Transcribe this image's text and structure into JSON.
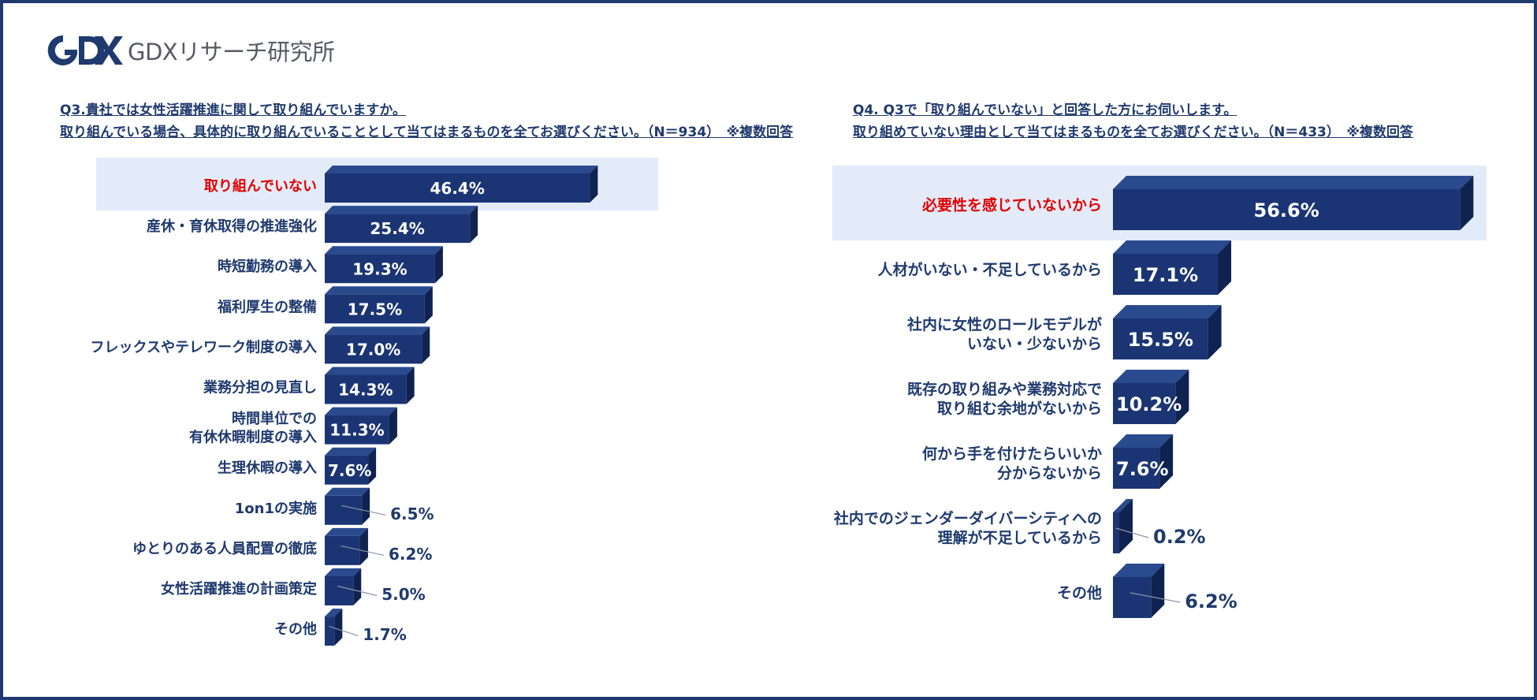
{
  "brand": {
    "logo_text": "GDXリサーチ研究所",
    "color": "#1f3a6e"
  },
  "questions": {
    "q3": {
      "line1": "Q3.貴社では女性活躍推進に関して取り組んでいますか。",
      "line2": "取り組んでいる場合、具体的に取り組んでいることとして当てはまるものを全てお選びください。（N＝934）　※複数回答"
    },
    "q4": {
      "line1": "Q4. Q3で「取り組んでいない」と回答した方にお伺いします。",
      "line2": "取り組めていない理由として当てはまるものを全てお選びください。（N＝433）　※複数回答"
    }
  },
  "colors": {
    "bar_front": "#1b3574",
    "bar_side": "#0f2250",
    "bar_top": "#2a4a8e",
    "highlight_bg": "#e3ebf8",
    "highlight_text": "#e00000",
    "label_text": "#1f3a6e"
  },
  "chart_data": [
    {
      "type": "bar",
      "orientation": "horizontal",
      "categories": [
        "取り組んでいない",
        "産休・育休取得の推進強化",
        "時短勤務の導入",
        "福利厚生の整備",
        "フレックスやテレワーク制度の導入",
        "業務分担の見直し",
        "時間単位での\n有休休暇制度の導入",
        "生理休暇の導入",
        "1on1の実施",
        "ゆとりのある人員配置の徹底",
        "女性活躍推進の計画策定",
        "その他"
      ],
      "values": [
        46.4,
        25.4,
        19.3,
        17.5,
        17.0,
        14.3,
        11.3,
        7.6,
        6.5,
        6.2,
        5.0,
        1.7
      ],
      "data_labels": [
        "46.4%",
        "25.4%",
        "19.3%",
        "17.5%",
        "17.0%",
        "14.3%",
        "11.3%",
        "7.6%",
        "6.5%",
        "6.2%",
        "5.0%",
        "1.7%"
      ],
      "highlight_index": 0
    },
    {
      "type": "bar",
      "orientation": "horizontal",
      "categories": [
        "必要性を感じていないから",
        "人材がいない・不足しているから",
        "社内に女性のロールモデルが\nいない・少ないから",
        "既存の取り組みや業務対応で\n取り組む余地がないから",
        "何から手を付けたらいいか\n分からないから",
        "社内でのジェンダーダイバーシティへの\n理解が不足しているから",
        "その他"
      ],
      "values": [
        56.6,
        17.1,
        15.5,
        10.2,
        7.6,
        0.2,
        6.2
      ],
      "data_labels": [
        "56.6%",
        "17.1%",
        "15.5%",
        "10.2%",
        "7.6%",
        "0.2%",
        "6.2%"
      ],
      "highlight_index": 0
    }
  ]
}
